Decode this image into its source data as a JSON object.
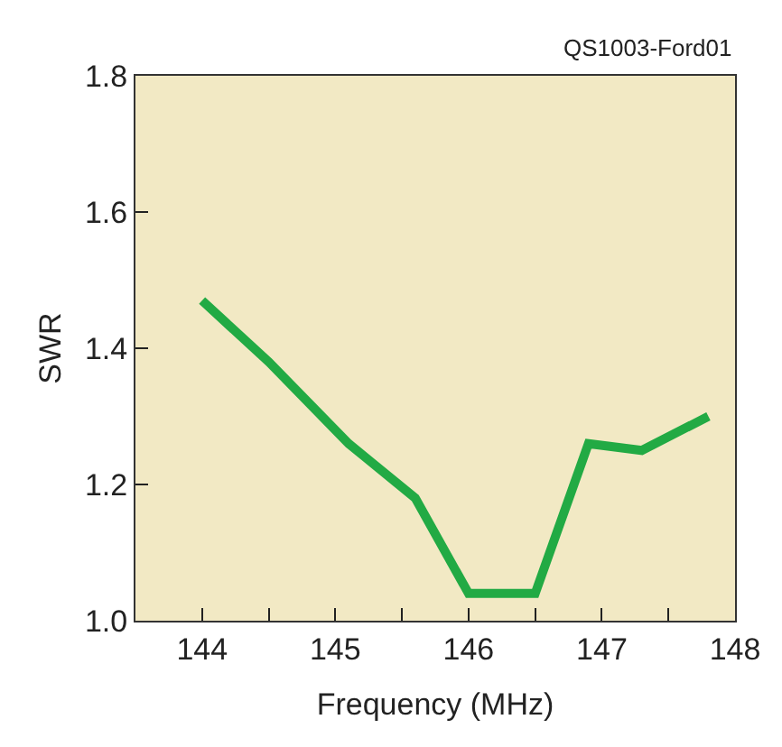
{
  "chart_data": {
    "type": "line",
    "xlabel": "Frequency (MHz)",
    "ylabel": "SWR",
    "annotations": [
      "QS1003-Ford01"
    ],
    "x": [
      144,
      144.5,
      145.1,
      145.6,
      146.0,
      146.5,
      146.9,
      147.3,
      147.8
    ],
    "series": [
      {
        "color": "#22aa44",
        "values": [
          1.47,
          1.38,
          1.26,
          1.18,
          1.04,
          1.04,
          1.26,
          1.25,
          1.3
        ]
      }
    ],
    "xlim": [
      143.5,
      148
    ],
    "xticks": [
      144,
      {
        "value": 144.5,
        "label": null
      },
      145,
      {
        "value": 145.5,
        "label": null
      },
      146,
      {
        "value": 146.5,
        "label": null
      },
      147,
      {
        "value": 147.5,
        "label": null
      },
      148
    ],
    "ylim": [
      1.0,
      1.8
    ],
    "yticks": [
      {
        "value": 1,
        "label": "1.0"
      },
      1.2,
      1.4,
      1.6,
      1.8
    ],
    "grid": false,
    "marker": "none",
    "line_style": "solid"
  }
}
